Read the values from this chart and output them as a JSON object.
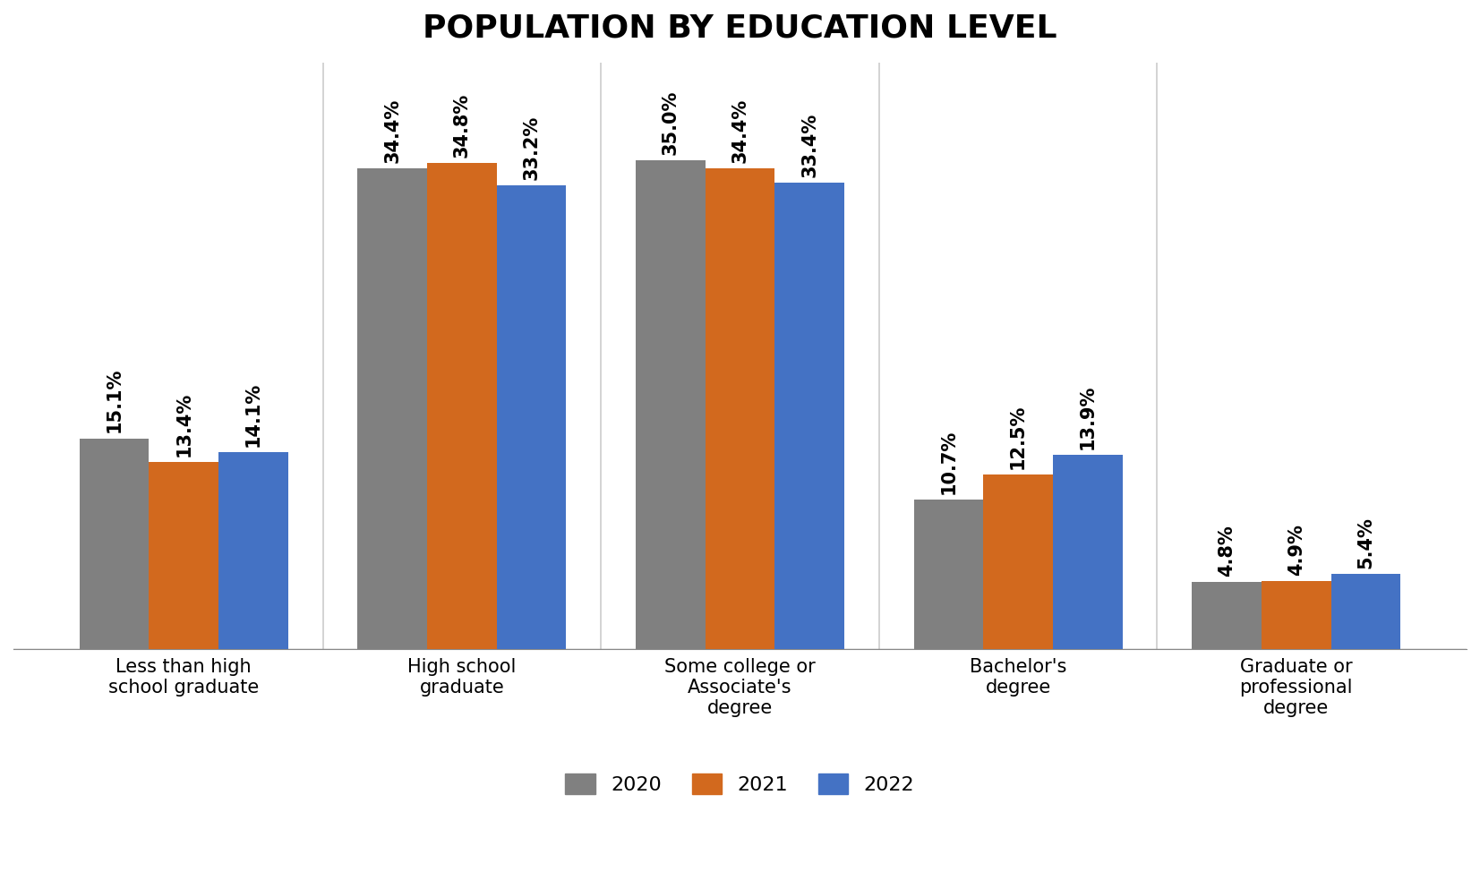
{
  "title": "POPULATION BY EDUCATION LEVEL",
  "categories": [
    "Less than high\nschool graduate",
    "High school\ngraduate",
    "Some college or\nAssociate's\ndegree",
    "Bachelor's\ndegree",
    "Graduate or\nprofessional\ndegree"
  ],
  "years": [
    "2020",
    "2021",
    "2022"
  ],
  "values": {
    "2020": [
      15.1,
      34.4,
      35.0,
      10.7,
      4.8
    ],
    "2021": [
      13.4,
      34.8,
      34.4,
      12.5,
      4.9
    ],
    "2022": [
      14.1,
      33.2,
      33.4,
      13.9,
      5.4
    ]
  },
  "colors": {
    "2020": "#808080",
    "2021": "#D2691E",
    "2022": "#4472C4"
  },
  "bar_width": 0.25,
  "title_fontsize": 26,
  "label_fontsize": 16,
  "tick_fontsize": 15,
  "legend_fontsize": 16,
  "annotation_fontsize": 15,
  "ylim": [
    0,
    42
  ],
  "background_color": "#ffffff",
  "grid_color": "#cccccc"
}
